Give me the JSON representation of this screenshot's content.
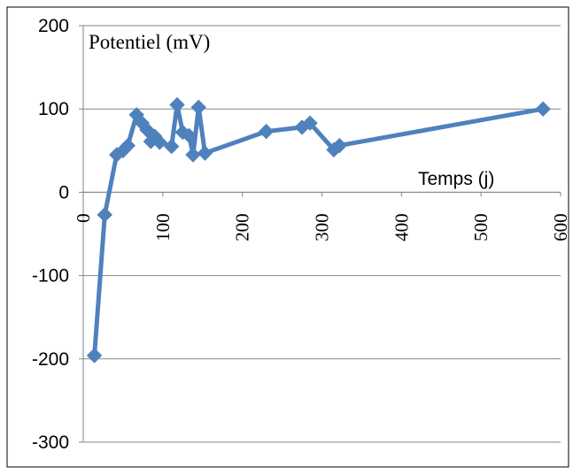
{
  "chart_data": {
    "type": "line",
    "title": "",
    "xlabel": "Temps (j)",
    "ylabel": "Potentiel (mV)",
    "xlim": [
      0,
      600
    ],
    "ylim": [
      -300,
      200
    ],
    "x_ticks": [
      0,
      100,
      200,
      300,
      400,
      500,
      600
    ],
    "y_ticks": [
      200,
      100,
      0,
      -100,
      -200,
      -300
    ],
    "grid": "horizontal",
    "legend": "none",
    "marker": "diamond",
    "color": "#4f81bd",
    "series": [
      {
        "x": [
          14,
          27,
          42,
          50,
          56,
          67,
          74,
          80,
          85,
          90,
          96,
          111,
          118,
          125,
          133,
          138,
          145,
          153,
          230,
          275,
          285,
          315,
          322,
          578
        ],
        "y": [
          -196,
          -27,
          45,
          50,
          56,
          93,
          83,
          75,
          61,
          67,
          60,
          55,
          105,
          72,
          68,
          45,
          102,
          47,
          73,
          78,
          83,
          51,
          56,
          100
        ]
      }
    ]
  }
}
